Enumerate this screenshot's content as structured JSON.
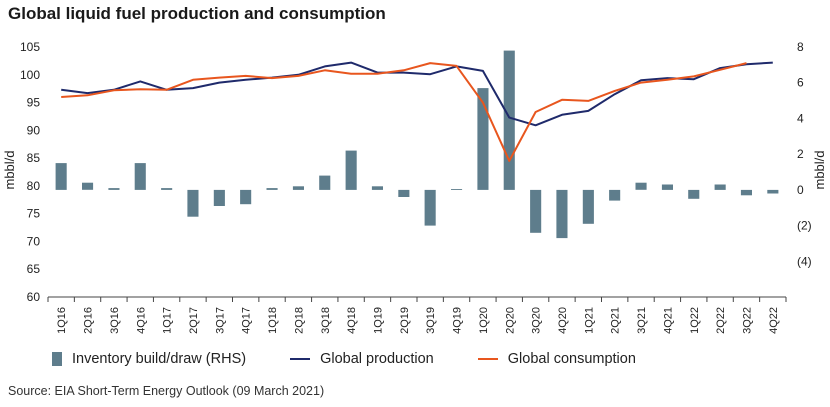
{
  "title": "Global liquid fuel production and consumption",
  "source": "Source: EIA Short-Term Energy Outlook (09 March 2021)",
  "legend": {
    "inventory": "Inventory build/draw (RHS)",
    "production": "Global production",
    "consumption": "Global consumption"
  },
  "colors": {
    "bars": "#5e7d8c",
    "production": "#1f2a6b",
    "consumption": "#e8561e",
    "axis": "#444444"
  },
  "chart_data": {
    "type": "bar+line",
    "categories": [
      "1Q16",
      "2Q16",
      "3Q16",
      "4Q16",
      "1Q17",
      "2Q17",
      "3Q17",
      "4Q17",
      "1Q18",
      "2Q18",
      "3Q18",
      "4Q18",
      "1Q19",
      "2Q19",
      "3Q19",
      "4Q19",
      "1Q20",
      "2Q20",
      "3Q20",
      "4Q20",
      "1Q21",
      "2Q21",
      "3Q21",
      "4Q21",
      "1Q22",
      "2Q22",
      "3Q22",
      "4Q22"
    ],
    "ylabel": "mbbl/d",
    "y2label": "mbbl/d",
    "ylim": [
      60,
      105
    ],
    "yticks": [
      "60",
      "65",
      "70",
      "75",
      "80",
      "85",
      "90",
      "95",
      "100",
      "105"
    ],
    "y2lim": [
      -6,
      8
    ],
    "y2ticks": [
      {
        "v": 8,
        "label": "8"
      },
      {
        "v": 6,
        "label": "6"
      },
      {
        "v": 4,
        "label": "4"
      },
      {
        "v": 2,
        "label": "2"
      },
      {
        "v": 0,
        "label": "0"
      },
      {
        "v": -2,
        "label": "(2)"
      },
      {
        "v": -4,
        "label": "(4)"
      }
    ],
    "grid": false,
    "legend_position": "bottom",
    "series": [
      {
        "name": "Inventory build/draw (RHS)",
        "type": "bar",
        "axis": "right",
        "values": [
          1.5,
          0.4,
          0.1,
          1.5,
          0.1,
          -1.5,
          -0.9,
          -0.8,
          0.1,
          0.2,
          0.8,
          2.2,
          0.2,
          -0.4,
          -2.0,
          0.05,
          5.7,
          7.8,
          -2.4,
          -2.7,
          -1.9,
          -0.6,
          0.4,
          0.3,
          -0.5,
          0.3,
          -0.3,
          -0.2
        ]
      },
      {
        "name": "Global production",
        "type": "line",
        "axis": "left",
        "values": [
          97.3,
          96.7,
          97.3,
          98.8,
          97.3,
          97.6,
          98.6,
          99.1,
          99.5,
          100.0,
          101.5,
          102.2,
          100.4,
          100.4,
          100.1,
          101.5,
          100.7,
          92.3,
          90.9,
          92.8,
          93.5,
          96.5,
          99.0,
          99.4,
          99.2,
          101.2,
          101.9,
          102.2
        ]
      },
      {
        "name": "Global consumption",
        "type": "line",
        "axis": "left",
        "values": [
          96.0,
          96.3,
          97.2,
          97.4,
          97.3,
          99.1,
          99.5,
          99.8,
          99.4,
          99.8,
          100.8,
          100.2,
          100.2,
          100.8,
          102.1,
          101.6,
          95.0,
          84.5,
          93.3,
          95.5,
          95.3,
          97.1,
          98.6,
          99.1,
          99.7,
          100.9,
          102.1,
          null
        ]
      }
    ]
  }
}
